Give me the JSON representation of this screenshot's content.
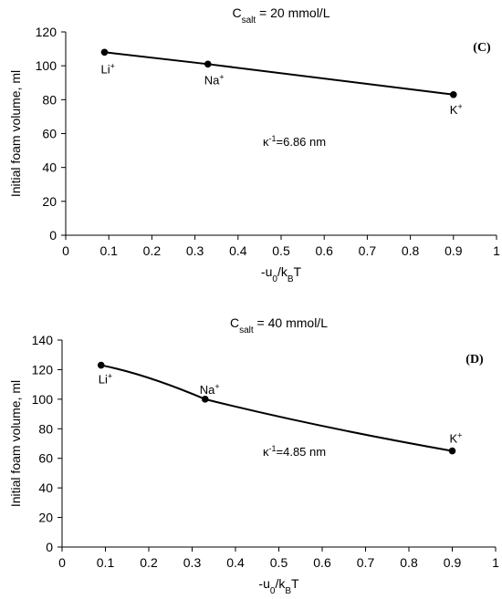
{
  "chart_data": [
    {
      "type": "line",
      "title": {
        "main": "C",
        "sub": "salt",
        "rest": " = 20 mmol/L"
      },
      "panel_label": "(C)",
      "ylabel": "Initial foam volume, ml",
      "xlabel": {
        "main": "-u",
        "sub1": "0",
        "mid": "/k",
        "sub2": "B",
        "end": "T"
      },
      "annotation": {
        "main": "κ",
        "sup": "-1",
        "rest": "=6.86 nm"
      },
      "xlim": [
        0,
        1
      ],
      "ylim": [
        0,
        120
      ],
      "xticks": [
        "0",
        "0.1",
        "0.2",
        "0.3",
        "0.4",
        "0.5",
        "0.6",
        "0.7",
        "0.8",
        "0.9",
        "1"
      ],
      "yticks": [
        "0",
        "20",
        "40",
        "60",
        "80",
        "100",
        "120"
      ],
      "x": [
        0.09,
        0.33,
        0.9
      ],
      "y": [
        108,
        101,
        83
      ],
      "point_labels": [
        {
          "main": "Li",
          "sup": "+"
        },
        {
          "main": "Na",
          "sup": "+"
        },
        {
          "main": "K",
          "sup": "+"
        }
      ],
      "grid": false,
      "line_color": "#000000"
    },
    {
      "type": "line",
      "title": {
        "main": "C",
        "sub": "salt",
        "rest": " = 40 mmol/L"
      },
      "panel_label": "(D)",
      "ylabel": "Initial foam volume, ml",
      "xlabel": {
        "main": "-u",
        "sub1": "0",
        "mid": "/k",
        "sub2": "B",
        "end": "T"
      },
      "annotation": {
        "main": "κ",
        "sup": "-1",
        "rest": "=4.85 nm"
      },
      "xlim": [
        0,
        1
      ],
      "ylim": [
        0,
        140
      ],
      "xticks": [
        "0",
        "0.1",
        "0.2",
        "0.3",
        "0.4",
        "0.5",
        "0.6",
        "0.7",
        "0.8",
        "0.9",
        "1"
      ],
      "yticks": [
        "0",
        "20",
        "40",
        "60",
        "80",
        "100",
        "120",
        "140"
      ],
      "x": [
        0.09,
        0.33,
        0.9
      ],
      "y": [
        123,
        100,
        65
      ],
      "point_labels": [
        {
          "main": "Li",
          "sup": "+"
        },
        {
          "main": "Na",
          "sup": "+"
        },
        {
          "main": "K",
          "sup": "+"
        }
      ],
      "grid": false,
      "line_color": "#000000"
    }
  ]
}
